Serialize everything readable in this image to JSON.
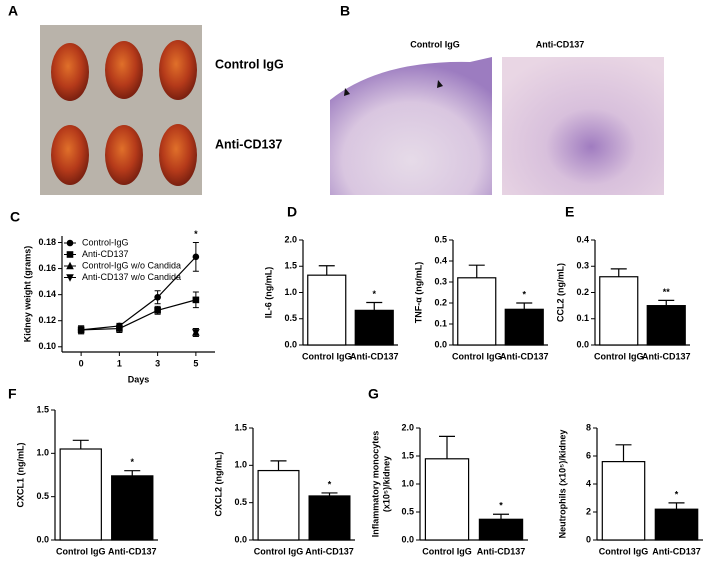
{
  "panel_labels": [
    "A",
    "B",
    "C",
    "D",
    "E",
    "F",
    "G"
  ],
  "panel_a": {
    "labels": [
      "Control IgG",
      "Anti-CD137"
    ]
  },
  "panel_b": {
    "labels": [
      "Control IgG",
      "Anti-CD137"
    ]
  },
  "chart_data": [
    {
      "type": "line",
      "categories": [
        "0",
        "1",
        "3",
        "5"
      ],
      "xlabel": "Days",
      "ylabel": "Kidney weight (grams)",
      "ylim": [
        0.096,
        0.185
      ],
      "yticks": [
        {
          "value": 0.1,
          "label": "0.10"
        },
        0.12,
        0.14,
        0.16,
        0.18
      ],
      "annotation": "*",
      "series": [
        {
          "name": "Control-IgG",
          "marker": "circle",
          "color": "#000000",
          "values": [
            0.113,
            0.116,
            0.138,
            0.169
          ],
          "errors": [
            0.003,
            0.002,
            0.005,
            0.011
          ]
        },
        {
          "name": "Anti-CD137",
          "marker": "square",
          "color": "#000000",
          "values": [
            0.113,
            0.114,
            0.128,
            0.136
          ],
          "errors": [
            0.003,
            0.003,
            0.003,
            0.006
          ]
        },
        {
          "name": "Control-IgG w/o Candida",
          "marker": "triangle-up",
          "color": "#000000",
          "values": [
            null,
            null,
            null,
            0.111
          ],
          "errors": [
            null,
            null,
            null,
            0.003
          ]
        },
        {
          "name": "Anti-CD137 w/o Candida",
          "marker": "triangle-down",
          "color": "#000000",
          "values": [
            null,
            null,
            null,
            0.111
          ],
          "errors": [
            null,
            null,
            null,
            0.003
          ]
        }
      ]
    },
    {
      "type": "bar",
      "categories": [
        "Control IgG",
        "Anti-CD137"
      ],
      "ylabel": "IL-6 (ng/mL)",
      "colors": [
        "#ffffff",
        "#000000"
      ],
      "values": [
        1.33,
        0.66
      ],
      "errors": [
        0.18,
        0.15
      ],
      "significance": "*",
      "ylim": [
        0,
        2
      ],
      "yticks": [
        {
          "value": 0,
          "label": "0.0"
        },
        0.5,
        {
          "value": 1,
          "label": "1.0"
        },
        1.5,
        {
          "value": 2,
          "label": "2.0"
        }
      ]
    },
    {
      "type": "bar",
      "categories": [
        "Control IgG",
        "Anti-CD137"
      ],
      "ylabel": "TNF-α (ng/mL)",
      "colors": [
        "#ffffff",
        "#000000"
      ],
      "values": [
        0.32,
        0.17
      ],
      "errors": [
        0.06,
        0.03
      ],
      "significance": "*",
      "ylim": [
        0,
        0.5
      ],
      "yticks": [
        {
          "value": 0,
          "label": "0.0"
        },
        0.1,
        0.2,
        0.3,
        0.4,
        0.5
      ]
    },
    {
      "type": "bar",
      "categories": [
        "Control IgG",
        "Anti-CD137"
      ],
      "ylabel": "CCL2 (ng/mL)",
      "colors": [
        "#ffffff",
        "#000000"
      ],
      "values": [
        0.26,
        0.15
      ],
      "errors": [
        0.03,
        0.02
      ],
      "significance": "**",
      "ylim": [
        0,
        0.4
      ],
      "yticks": [
        {
          "value": 0,
          "label": "0.0"
        },
        0.1,
        0.2,
        0.3,
        0.4
      ]
    },
    {
      "type": "bar",
      "categories": [
        "Control IgG",
        "Anti-CD137"
      ],
      "ylabel": "CXCL1 (ng/mL)",
      "colors": [
        "#ffffff",
        "#000000"
      ],
      "values": [
        1.05,
        0.74
      ],
      "errors": [
        0.1,
        0.06
      ],
      "significance": "*",
      "ylim": [
        0,
        1.5
      ],
      "yticks": [
        {
          "value": 0,
          "label": "0.0"
        },
        0.5,
        {
          "value": 1,
          "label": "1.0"
        },
        1.5
      ]
    },
    {
      "type": "bar",
      "categories": [
        "Control IgG",
        "Anti-CD137"
      ],
      "ylabel": "CXCL2 (ng/mL)",
      "colors": [
        "#ffffff",
        "#000000"
      ],
      "values": [
        0.93,
        0.59
      ],
      "errors": [
        0.13,
        0.04
      ],
      "significance": "*",
      "ylim": [
        0,
        1.5
      ],
      "yticks": [
        {
          "value": 0,
          "label": "0.0"
        },
        0.5,
        {
          "value": 1,
          "label": "1.0"
        },
        1.5
      ]
    },
    {
      "type": "bar",
      "categories": [
        "Control IgG",
        "Anti-CD137"
      ],
      "ylabel": [
        "Inflammatory monocytes",
        "(x10⁵)/kidney"
      ],
      "colors": [
        "#ffffff",
        "#000000"
      ],
      "values": [
        1.45,
        0.37
      ],
      "errors": [
        0.4,
        0.09
      ],
      "significance": "*",
      "ylim": [
        0,
        2
      ],
      "yticks": [
        {
          "value": 0,
          "label": "0.0"
        },
        0.5,
        {
          "value": 1,
          "label": "1.0"
        },
        1.5,
        {
          "value": 2,
          "label": "2.0"
        }
      ]
    },
    {
      "type": "bar",
      "categories": [
        "Control IgG",
        "Anti-CD137"
      ],
      "ylabel": "Neutrophils (x10⁵)/kidney",
      "colors": [
        "#ffffff",
        "#000000"
      ],
      "values": [
        5.6,
        2.2
      ],
      "errors": [
        1.2,
        0.45
      ],
      "significance": "*",
      "ylim": [
        0,
        8
      ],
      "yticks": [
        0,
        2,
        4,
        6,
        8
      ]
    }
  ]
}
